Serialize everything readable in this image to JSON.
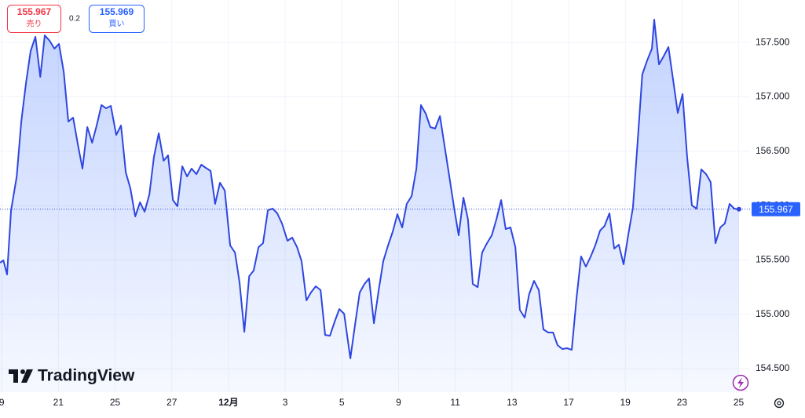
{
  "chart_data": {
    "type": "area",
    "xlim": [
      -0.06,
      26.4
    ],
    "ylim": [
      154.284,
      157.891
    ],
    "grid": true,
    "xticks": [
      {
        "value": 0,
        "label": "9"
      },
      {
        "value": 2,
        "label": "21"
      },
      {
        "value": 4,
        "label": "25"
      },
      {
        "value": 6,
        "label": "27"
      },
      {
        "value": 8,
        "label": "12月"
      },
      {
        "value": 10,
        "label": "3"
      },
      {
        "value": 12,
        "label": "5"
      },
      {
        "value": 14,
        "label": "9"
      },
      {
        "value": 16,
        "label": "11"
      },
      {
        "value": 18,
        "label": "13"
      },
      {
        "value": 20,
        "label": "17"
      },
      {
        "value": 22,
        "label": "19"
      },
      {
        "value": 24,
        "label": "23"
      },
      {
        "value": 26,
        "label": "25"
      }
    ],
    "yticks": [
      {
        "value": 154.5,
        "label": "154.500"
      },
      {
        "value": 155,
        "label": "155.000"
      },
      {
        "value": 155.5,
        "label": "155.500"
      },
      {
        "value": 156,
        "label": "156.000"
      },
      {
        "value": 156.5,
        "label": "156.500"
      },
      {
        "value": 157,
        "label": "157.000"
      },
      {
        "value": 157.5,
        "label": "157.500"
      }
    ],
    "series": [
      {
        "color": "#2e46e0",
        "x": [
          -0.06,
          0.06,
          0.19,
          0.33,
          0.53,
          0.69,
          0.86,
          1.02,
          1.19,
          1.36,
          1.52,
          1.69,
          1.86,
          2.02,
          2.19,
          2.35,
          2.52,
          2.69,
          2.85,
          3.02,
          3.19,
          3.35,
          3.52,
          3.68,
          3.85,
          4.04,
          4.21,
          4.38,
          4.54,
          4.71,
          4.88,
          5.04,
          5.21,
          5.37,
          5.54,
          5.71,
          5.87,
          6.04,
          6.2,
          6.37,
          6.54,
          6.7,
          6.87,
          7.04,
          7.2,
          7.37,
          7.53,
          7.7,
          7.87,
          8.06,
          8.23,
          8.39,
          8.56,
          8.73,
          8.89,
          9.06,
          9.22,
          9.39,
          9.56,
          9.72,
          9.89,
          10.08,
          10.25,
          10.42,
          10.58,
          10.75,
          10.91,
          11.08,
          11.25,
          11.41,
          11.58,
          11.75,
          11.91,
          12.08,
          12.3,
          12.47,
          12.63,
          12.8,
          12.96,
          13.13,
          13.3,
          13.46,
          13.63,
          13.8,
          13.96,
          14.13,
          14.29,
          14.46,
          14.63,
          14.79,
          14.96,
          15.12,
          15.29,
          15.46,
          15.62,
          15.79,
          15.96,
          16.12,
          16.29,
          16.45,
          16.62,
          16.79,
          16.95,
          17.12,
          17.29,
          17.45,
          17.62,
          17.78,
          17.95,
          18.12,
          18.28,
          18.45,
          18.61,
          18.78,
          18.95,
          19.11,
          19.28,
          19.45,
          19.61,
          19.78,
          19.94,
          20.11,
          20.28,
          20.44,
          20.61,
          20.78,
          20.94,
          21.11,
          21.27,
          21.44,
          21.61,
          21.77,
          21.94,
          22.11,
          22.27,
          22.44,
          22.6,
          22.77,
          22.94,
          23.02,
          23.19,
          23.35,
          23.52,
          23.68,
          23.85,
          24.02,
          24.18,
          24.35,
          24.52,
          24.68,
          24.85,
          25.01,
          25.18,
          25.35,
          25.51,
          25.68,
          25.84,
          26.01
        ],
        "values": [
          155.474,
          155.496,
          155.366,
          155.957,
          156.268,
          156.773,
          157.133,
          157.422,
          157.552,
          157.184,
          157.566,
          157.516,
          157.444,
          157.487,
          157.227,
          156.773,
          156.809,
          156.556,
          156.34,
          156.722,
          156.578,
          156.737,
          156.924,
          156.895,
          156.917,
          156.65,
          156.737,
          156.304,
          156.159,
          155.9,
          156.03,
          155.943,
          156.102,
          156.448,
          156.665,
          156.412,
          156.462,
          156.051,
          155.994,
          156.361,
          156.268,
          156.34,
          156.289,
          156.376,
          156.347,
          156.318,
          156.015,
          156.21,
          156.138,
          155.633,
          155.568,
          155.294,
          154.839,
          155.351,
          155.402,
          155.618,
          155.654,
          155.957,
          155.972,
          155.929,
          155.835,
          155.676,
          155.705,
          155.618,
          155.488,
          155.128,
          155.2,
          155.258,
          155.222,
          154.81,
          154.803,
          154.933,
          155.048,
          155.005,
          154.594,
          154.911,
          155.2,
          155.279,
          155.33,
          154.918,
          155.222,
          155.488,
          155.633,
          155.763,
          155.921,
          155.799,
          156.015,
          156.087,
          156.34,
          156.924,
          156.845,
          156.722,
          156.708,
          156.823,
          156.556,
          156.268,
          155.979,
          155.727,
          156.073,
          155.871,
          155.279,
          155.25,
          155.568,
          155.654,
          155.727,
          155.871,
          156.051,
          155.784,
          155.799,
          155.618,
          155.041,
          154.969,
          155.185,
          155.308,
          155.222,
          154.861,
          154.832,
          154.832,
          154.716,
          154.68,
          154.688,
          154.673,
          155.149,
          155.532,
          155.438,
          155.532,
          155.633,
          155.77,
          155.813,
          155.929,
          155.604,
          155.64,
          155.46,
          155.741,
          155.979,
          156.607,
          157.206,
          157.335,
          157.444,
          157.711,
          157.299,
          157.372,
          157.458,
          157.17,
          156.852,
          157.025,
          156.448,
          156.001,
          155.972,
          156.333,
          156.289,
          156.217,
          155.654,
          155.799,
          155.835,
          156.015,
          155.972,
          155.967
        ]
      }
    ]
  },
  "trade_panel": {
    "sell_price": "155.967",
    "sell_label": "売り",
    "spread": "0.2",
    "buy_price": "155.969",
    "buy_label": "買い"
  },
  "branding": "TradingView"
}
